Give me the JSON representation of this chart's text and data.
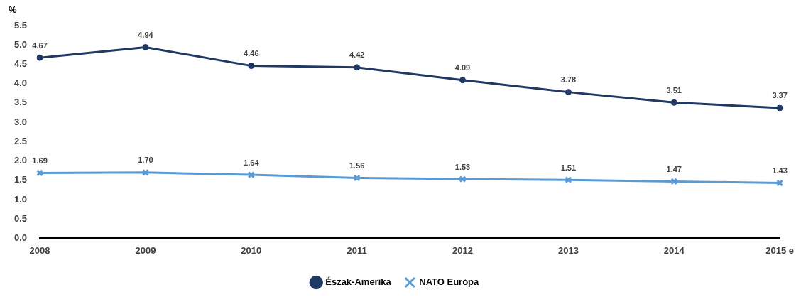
{
  "chart_data": {
    "type": "line",
    "ylabel": "%",
    "categories": [
      "2008",
      "2009",
      "2010",
      "2011",
      "2012",
      "2013",
      "2014",
      "2015 e"
    ],
    "series": [
      {
        "name": "Észak-Amerika",
        "color": "#1f3864",
        "marker": "circle",
        "values": [
          4.67,
          4.94,
          4.46,
          4.42,
          4.09,
          3.78,
          3.51,
          3.37
        ],
        "value_labels": [
          "4.67",
          "4.94",
          "4.46",
          "4.42",
          "4.09",
          "3.78",
          "3.51",
          "3.37"
        ]
      },
      {
        "name": "NATO Európa",
        "color": "#5b9bd5",
        "marker": "cross",
        "values": [
          1.69,
          1.7,
          1.64,
          1.56,
          1.53,
          1.51,
          1.47,
          1.43
        ],
        "value_labels": [
          "1.69",
          "1.70",
          "1.64",
          "1.56",
          "1.53",
          "1.51",
          "1.47",
          "1.43"
        ]
      }
    ],
    "ylim": [
      0,
      5.5
    ],
    "yticks": [
      {
        "value": 0,
        "label": "0.0"
      },
      {
        "value": 0.5,
        "label": "0.5"
      },
      {
        "value": 1,
        "label": "1.0"
      },
      {
        "value": 1.5,
        "label": "1.5"
      },
      {
        "value": 2,
        "label": "2.0"
      },
      {
        "value": 2.5,
        "label": "2.5"
      },
      {
        "value": 3,
        "label": "3.0"
      },
      {
        "value": 3.5,
        "label": "3.5"
      },
      {
        "value": 4,
        "label": "4.0"
      },
      {
        "value": 4.5,
        "label": "4.5"
      },
      {
        "value": 5,
        "label": "5.0"
      },
      {
        "value": 5.5,
        "label": "5.5"
      }
    ],
    "grid": false,
    "legend": "bottom"
  }
}
